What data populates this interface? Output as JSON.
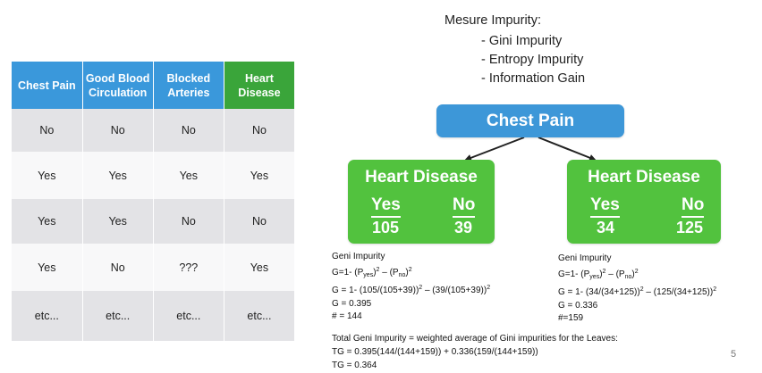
{
  "table": {
    "headers": [
      "Chest Pain",
      "Good Blood Circulation",
      "Blocked Arteries",
      "Heart Disease"
    ],
    "rows": [
      [
        "No",
        "No",
        "No",
        "No"
      ],
      [
        "Yes",
        "Yes",
        "Yes",
        "Yes"
      ],
      [
        "Yes",
        "Yes",
        "No",
        "No"
      ],
      [
        "Yes",
        "No",
        "???",
        "Yes"
      ],
      [
        "etc...",
        "etc...",
        "etc...",
        "etc..."
      ]
    ]
  },
  "measure": {
    "title": "Mesure Impurity:",
    "items": [
      "- Gini Impurity",
      "- Entropy Impurity",
      "- Information Gain"
    ]
  },
  "tree": {
    "root": "Chest Pain",
    "left": {
      "title": "Heart Disease",
      "yes_label": "Yes",
      "no_label": "No",
      "yes": "105",
      "no": "39"
    },
    "right": {
      "title": "Heart Disease",
      "yes_label": "Yes",
      "no_label": "No",
      "yes": "34",
      "no": "125"
    }
  },
  "impurity_left": {
    "heading": "Geni Impurity",
    "formula_prefix": "G=1- (P",
    "sub_yes": "yes",
    "sup1": "2",
    "formula_mid": " – (P",
    "sub_no": "no",
    "sup2": "2",
    "calc_text": "G = 1- (105/(105+39))",
    "calc_mid": " – (39/(105+39))",
    "calc_sup": "2",
    "g": "G =  0.395",
    "n": "# = 144"
  },
  "impurity_right": {
    "heading": "Geni Impurity",
    "formula_prefix": "G=1- (P",
    "sub_yes": "yes",
    "sup1": "2",
    "formula_mid": " – (P",
    "sub_no": "no",
    "sup2": "2",
    "calc_text": "G = 1- (34/(34+125))",
    "calc_mid": " – (125/(34+125))",
    "calc_sup": "2",
    "g": "G = 0.336",
    "n": "#=159"
  },
  "total": {
    "line1": "Total Geni Impurity  = weighted average of Gini impurities for the Leaves:",
    "line2": "TG =  0.395(144/(144+159)) + 0.336(159/(144+159))",
    "line3": "TG =  0.364"
  },
  "page_number": "5"
}
